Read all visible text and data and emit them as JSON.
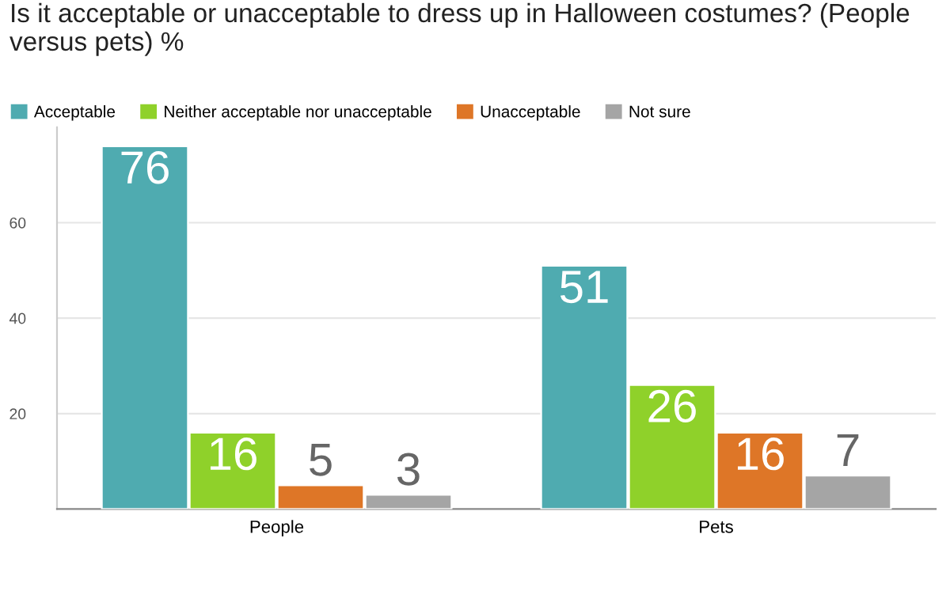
{
  "chart_data": {
    "type": "bar",
    "title": "Is it acceptable or unacceptable to dress up in Halloween costumes? (People versus pets) %",
    "categories": [
      "People",
      "Pets"
    ],
    "series": [
      {
        "name": "Acceptable",
        "color": "#4fabb0",
        "values": [
          76,
          51
        ]
      },
      {
        "name": "Neither acceptable nor unacceptable",
        "color": "#8fd12a",
        "values": [
          16,
          26
        ]
      },
      {
        "name": "Unacceptable",
        "color": "#de7627",
        "values": [
          5,
          16
        ]
      },
      {
        "name": "Not sure",
        "color": "#a5a5a5",
        "values": [
          3,
          7
        ]
      }
    ],
    "ylim": [
      0,
      80
    ],
    "yticks": [
      20,
      40,
      60
    ],
    "grid": "y",
    "legend": "top left",
    "data_labels": true
  }
}
